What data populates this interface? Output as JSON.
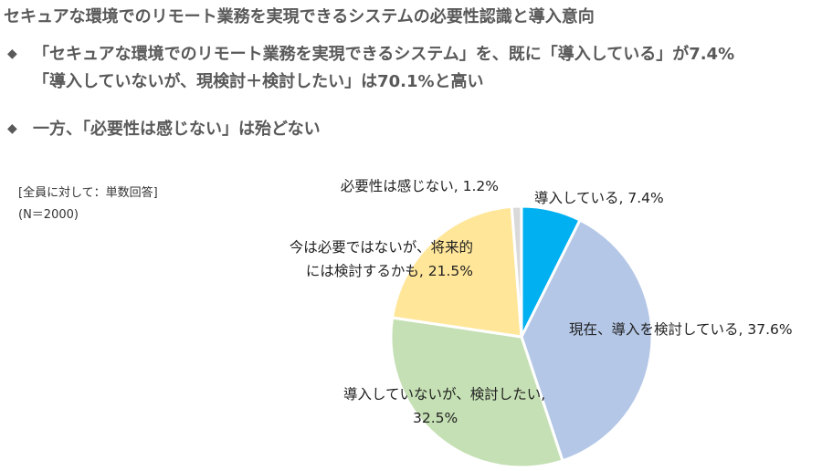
{
  "header": {
    "title": "セキュアな環境でのリモート業務を実現できるシステムの必要性認識と導入意向",
    "bullet_mark": "◆",
    "bullet1_line1": "「セキュアな環境でのリモート業務を実現できるシステム」を、既に「導入している」が7.4%",
    "bullet1_line2": "「導入していないが、現検討＋検討したい」は70.1%と高い",
    "bullet2": "一方、「必要性は感じない」は殆どない"
  },
  "notes": {
    "base": "[全員に対して：単数回答]",
    "n": "(N＝2000)"
  },
  "chart_data": {
    "type": "pie",
    "unit": "%",
    "slices": [
      {
        "name": "導入している",
        "value": 7.4,
        "color": "#00B0F0",
        "label_lines": [
          "導入している, 7.4%"
        ]
      },
      {
        "name": "現在、導入を検討している",
        "value": 37.6,
        "color": "#B4C7E7",
        "label_lines": [
          "現在、導入を検討している, 37.6%"
        ]
      },
      {
        "name": "導入していないが、検討したい",
        "value": 32.5,
        "color": "#C5E0B4",
        "label_lines": [
          "導入していないが、検討したい,",
          "32.5%"
        ]
      },
      {
        "name": "今は必要ではないが、将来的には検討するかも",
        "value": 21.5,
        "color": "#FFE699",
        "label_lines": [
          "今は必要ではないが、将来的",
          "には検討するかも, 21.5%"
        ]
      },
      {
        "name": "必要性は感じない",
        "value": 1.2,
        "color": "#D9D9D9",
        "label_lines": [
          "必要性は感じない, 1.2%"
        ]
      }
    ]
  }
}
